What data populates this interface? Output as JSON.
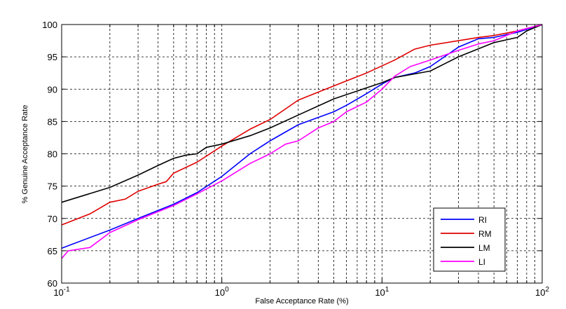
{
  "chart_data": {
    "type": "line",
    "xscale": "log",
    "xlim": [
      0.1,
      100
    ],
    "ylim": [
      60,
      100
    ],
    "xlabel": "False Acceptance Rate (%)",
    "ylabel": "% Genuine Acceptance Rate",
    "grid": true,
    "legend_position": "bottom-right",
    "x_ticks": [
      {
        "value": 0.1,
        "base": "10",
        "exp": "-1"
      },
      {
        "value": 1,
        "base": "10",
        "exp": "0"
      },
      {
        "value": 10,
        "base": "10",
        "exp": "1"
      },
      {
        "value": 100,
        "base": "10",
        "exp": "2"
      }
    ],
    "y_ticks": [
      "60",
      "65",
      "70",
      "75",
      "80",
      "85",
      "90",
      "95",
      "100"
    ],
    "series": [
      {
        "name": "RI",
        "color": "#0000ff",
        "points": [
          [
            0.1,
            65.4
          ],
          [
            0.2,
            68.2
          ],
          [
            0.3,
            70.0
          ],
          [
            0.5,
            72.2
          ],
          [
            0.7,
            74.0
          ],
          [
            1.0,
            76.5
          ],
          [
            1.5,
            80.0
          ],
          [
            2.0,
            82.0
          ],
          [
            3.0,
            84.5
          ],
          [
            5.0,
            86.5
          ],
          [
            6.0,
            87.5
          ],
          [
            8.0,
            89.3
          ],
          [
            10.0,
            90.8
          ],
          [
            12.0,
            91.8
          ],
          [
            16.0,
            92.5
          ],
          [
            20.0,
            93.5
          ],
          [
            30.0,
            96.5
          ],
          [
            40.0,
            97.8
          ],
          [
            50.0,
            98.0
          ],
          [
            70.0,
            98.8
          ],
          [
            100.0,
            100.0
          ]
        ]
      },
      {
        "name": "RM",
        "color": "#e00000",
        "points": [
          [
            0.1,
            69.0
          ],
          [
            0.15,
            70.7
          ],
          [
            0.2,
            72.5
          ],
          [
            0.25,
            73.0
          ],
          [
            0.3,
            74.2
          ],
          [
            0.4,
            75.3
          ],
          [
            0.45,
            75.7
          ],
          [
            0.5,
            77.0
          ],
          [
            0.7,
            78.7
          ],
          [
            1.0,
            81.2
          ],
          [
            1.5,
            83.8
          ],
          [
            2.0,
            85.3
          ],
          [
            3.0,
            88.3
          ],
          [
            5.0,
            90.5
          ],
          [
            8.0,
            92.5
          ],
          [
            12.0,
            94.5
          ],
          [
            16.0,
            96.2
          ],
          [
            20.0,
            96.8
          ],
          [
            30.0,
            97.5
          ],
          [
            40.0,
            98.0
          ],
          [
            50.0,
            98.3
          ],
          [
            70.0,
            99.0
          ],
          [
            100.0,
            100.0
          ]
        ]
      },
      {
        "name": "LM",
        "color": "#000000",
        "points": [
          [
            0.1,
            72.5
          ],
          [
            0.2,
            74.8
          ],
          [
            0.3,
            76.7
          ],
          [
            0.4,
            78.2
          ],
          [
            0.5,
            79.3
          ],
          [
            0.6,
            79.8
          ],
          [
            0.7,
            80.0
          ],
          [
            0.8,
            81.0
          ],
          [
            1.0,
            81.5
          ],
          [
            1.5,
            82.8
          ],
          [
            2.0,
            84.0
          ],
          [
            3.0,
            86.0
          ],
          [
            5.0,
            88.5
          ],
          [
            8.0,
            90.2
          ],
          [
            10.0,
            91.0
          ],
          [
            12.0,
            91.8
          ],
          [
            20.0,
            92.8
          ],
          [
            30.0,
            95.0
          ],
          [
            50.0,
            97.2
          ],
          [
            70.0,
            98.0
          ],
          [
            80.0,
            99.0
          ],
          [
            100.0,
            100.0
          ]
        ]
      },
      {
        "name": "LI",
        "color": "#ff00ff",
        "points": [
          [
            0.1,
            63.8
          ],
          [
            0.11,
            65.0
          ],
          [
            0.15,
            65.5
          ],
          [
            0.2,
            67.8
          ],
          [
            0.3,
            69.8
          ],
          [
            0.5,
            72.0
          ],
          [
            0.7,
            73.8
          ],
          [
            1.0,
            75.8
          ],
          [
            1.5,
            78.5
          ],
          [
            2.0,
            80.0
          ],
          [
            2.5,
            81.5
          ],
          [
            3.0,
            82.0
          ],
          [
            4.0,
            84.0
          ],
          [
            5.0,
            85.0
          ],
          [
            6.0,
            86.5
          ],
          [
            8.0,
            88.0
          ],
          [
            10.0,
            90.0
          ],
          [
            12.0,
            92.0
          ],
          [
            15.0,
            93.5
          ],
          [
            20.0,
            94.5
          ],
          [
            30.0,
            96.0
          ],
          [
            40.0,
            97.0
          ],
          [
            50.0,
            97.5
          ],
          [
            70.0,
            99.0
          ],
          [
            100.0,
            100.0
          ]
        ]
      }
    ]
  }
}
